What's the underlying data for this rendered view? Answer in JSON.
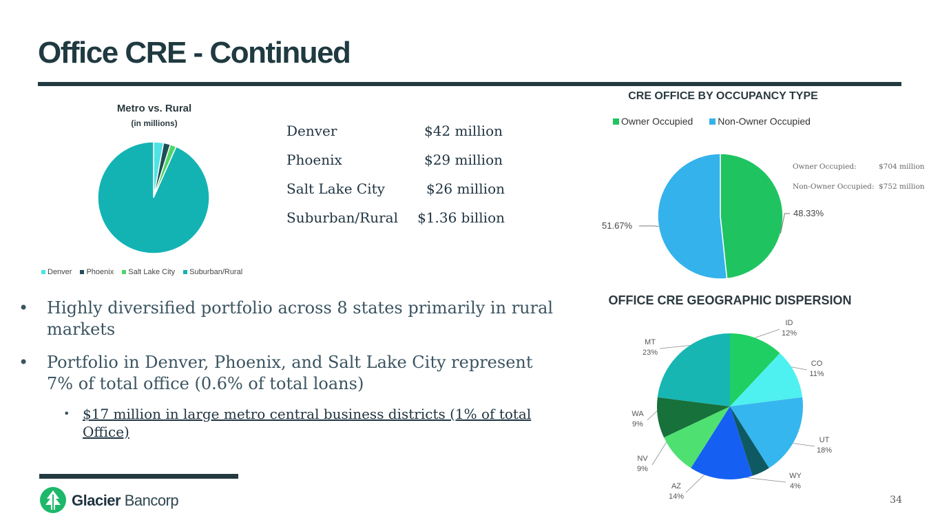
{
  "title": "Office CRE  - Continued",
  "metro_table": [
    {
      "name": "Denver",
      "value": "$42 million"
    },
    {
      "name": "Phoenix",
      "value": "$29 million"
    },
    {
      "name": "Salt Lake City",
      "value": "$26 million"
    },
    {
      "name": "Suburban/Rural",
      "value": "$1.36 billion"
    }
  ],
  "bullets": [
    "Highly diversified portfolio across 8 states primarily in rural markets",
    "Portfolio in Denver, Phoenix, and Salt Lake City represent 7% of total office (0.6% of total loans)"
  ],
  "sub_bullet": "$17 million in large metro central business districts (1% of total Office)",
  "bullet_glyph": "•",
  "occupancy_notes": [
    {
      "label": "Owner Occupied:",
      "value": "$704 million"
    },
    {
      "label": "Non-Owner Occupied:",
      "value": "$752 million"
    }
  ],
  "chart_data": [
    {
      "type": "pie",
      "title": "Metro vs. Rural",
      "subtitle": "(in millions)",
      "categories": [
        "Denver",
        "Phoenix",
        "Salt Lake City",
        "Suburban/Rural"
      ],
      "values": [
        42,
        29,
        26,
        1360
      ],
      "colors": [
        "#4fe3e3",
        "#1f4f57",
        "#4fd66a",
        "#14b3b3"
      ],
      "legend": "bottom"
    },
    {
      "type": "pie",
      "title": "CRE OFFICE BY OCCUPANCY TYPE",
      "categories": [
        "Owner Occupied",
        "Non-Owner Occupied"
      ],
      "values": [
        48.33,
        51.67
      ],
      "labels": [
        "48.33%",
        "51.67%"
      ],
      "colors": [
        "#1fc460",
        "#34b2ec"
      ],
      "legend": "top"
    },
    {
      "type": "pie",
      "title": "OFFICE CRE GEOGRAPHIC DISPERSION",
      "categories": [
        "ID",
        "CO",
        "UT",
        "WY",
        "AZ",
        "NV",
        "WA",
        "MT"
      ],
      "values": [
        12,
        11,
        18,
        4,
        14,
        9,
        9,
        23
      ],
      "labels": [
        "12%",
        "11%",
        "18%",
        "4%",
        "14%",
        "9%",
        "9%",
        "23%"
      ],
      "colors": [
        "#1fcf63",
        "#4ff0f0",
        "#36b6ee",
        "#0f5a62",
        "#1560f2",
        "#4fe072",
        "#16713b",
        "#17b6b3"
      ],
      "legend": "none"
    }
  ],
  "footer": {
    "logo_word1": "Glacier",
    "logo_word2": " Bancorp",
    "page_number": "34"
  }
}
